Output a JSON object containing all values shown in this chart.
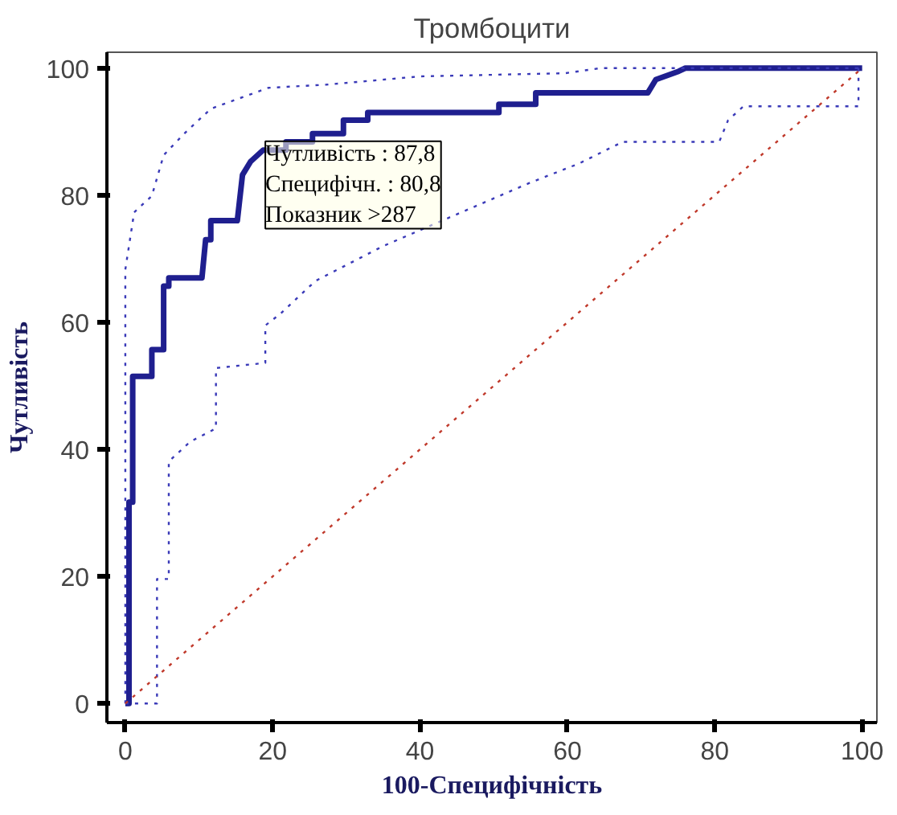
{
  "chart_data": {
    "type": "line",
    "title": "Тромбоцити",
    "xlabel": "100-Специфічність",
    "ylabel": "Чутливість",
    "xlim": [
      -2.5,
      102
    ],
    "ylim": [
      -3,
      102.5
    ],
    "xticks": [
      0,
      20,
      40,
      60,
      80,
      100
    ],
    "yticks": [
      0,
      20,
      40,
      60,
      80,
      100
    ],
    "grid": false,
    "marker": "none",
    "series": [
      {
        "color": "#1f1f8f",
        "line_style": "solid",
        "x": [
          0,
          0.5,
          0.5,
          1,
          1,
          3.6,
          3.6,
          5.2,
          5.2,
          5.9,
          5.9,
          10.4,
          10.9,
          11.6,
          11.6,
          15.2,
          15.9,
          17,
          18.7,
          21.8,
          21.8,
          25.4,
          25.4,
          29.6,
          29.6,
          32.9,
          32.9,
          50.7,
          50.7,
          55.7,
          55.7,
          70.9,
          72,
          75.1,
          76,
          100
        ],
        "values": [
          0,
          0,
          31.7,
          31.7,
          51.5,
          51.5,
          55.7,
          55.7,
          65.7,
          65.7,
          67,
          67,
          73,
          73,
          76,
          76,
          83.2,
          85.3,
          87.1,
          87.1,
          88.4,
          88.4,
          89.7,
          89.7,
          91.8,
          91.8,
          93,
          93,
          94.3,
          94.3,
          96.1,
          96.1,
          98.2,
          99.5,
          100,
          100
        ]
      },
      {
        "color": "#3a3ab8",
        "line_style": "dotted",
        "x": [
          0,
          0,
          1.2,
          3.6,
          5.2,
          8,
          11.6,
          19.4,
          27.3,
          40,
          59.7,
          64.5,
          100
        ],
        "values": [
          0,
          68.3,
          77.3,
          79.9,
          86.3,
          89.7,
          93.6,
          96.9,
          97.4,
          98.7,
          99.2,
          100,
          100
        ]
      },
      {
        "color": "#3a3ab8",
        "line_style": "dotted",
        "x": [
          0,
          4.3,
          4.3,
          5.9,
          5.9,
          8.8,
          12.3,
          12.3,
          19,
          19,
          21,
          25.8,
          35,
          45,
          55,
          61.6,
          67.5,
          80.6,
          81.8,
          83.9,
          99.5,
          99.5,
          100
        ],
        "values": [
          0,
          0,
          19.6,
          19.6,
          38.1,
          41.2,
          43.3,
          52.8,
          53.6,
          59.5,
          61.3,
          66.5,
          72,
          77,
          82,
          85,
          88.4,
          88.4,
          91.8,
          94,
          94,
          100,
          100
        ]
      },
      {
        "color": "#c0392b",
        "line_style": "dotted",
        "x": [
          0,
          100
        ],
        "values": [
          0,
          100
        ]
      }
    ],
    "annotations": [
      "Чутливість : 87,8",
      "Специфічн. : 80,8",
      "Показник >287"
    ]
  }
}
